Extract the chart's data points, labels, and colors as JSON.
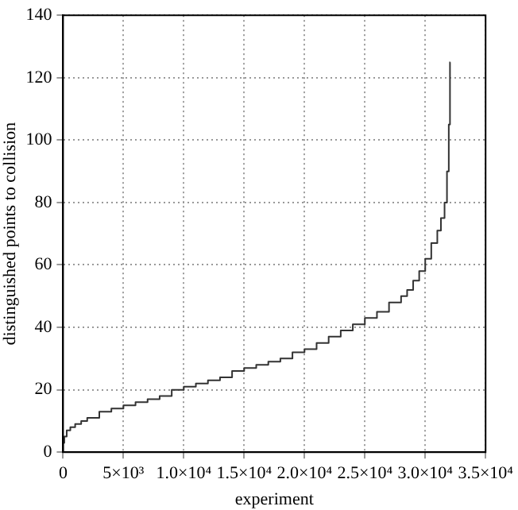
{
  "chart_data": {
    "type": "step",
    "xlabel": "experiment",
    "ylabel": "distinguished points to collision",
    "x": [
      0,
      100,
      300,
      600,
      1000,
      1500,
      2000,
      3000,
      4000,
      5000,
      6000,
      7000,
      8000,
      9000,
      10000,
      11000,
      12000,
      13000,
      14000,
      15000,
      16000,
      17000,
      18000,
      19000,
      20000,
      21000,
      22000,
      23000,
      24000,
      25000,
      26000,
      27000,
      28000,
      28500,
      29000,
      29500,
      30000,
      30500,
      31000,
      31300,
      31600,
      31800,
      31950,
      32050,
      32060
    ],
    "series": [
      {
        "color": "#333333",
        "values": [
          0,
          3,
          5,
          7,
          8,
          9,
          10,
          11,
          13,
          14,
          15,
          16,
          17,
          18,
          20,
          21,
          22,
          23,
          24,
          26,
          27,
          28,
          29,
          30,
          32,
          33,
          35,
          37,
          39,
          41,
          43,
          45,
          48,
          50,
          52,
          55,
          58,
          62,
          67,
          71,
          75,
          80,
          90,
          105,
          125
        ]
      }
    ],
    "xlim": [
      0,
      35000
    ],
    "ylim": [
      0,
      140
    ],
    "xticks": [
      0,
      {
        "value": 5000,
        "label": "5×10³"
      },
      {
        "value": 10000,
        "label": "1.0×10⁴"
      },
      {
        "value": 15000,
        "label": "1.5×10⁴"
      },
      {
        "value": 20000,
        "label": "2.0×10⁴"
      },
      {
        "value": 25000,
        "label": "2.5×10⁴"
      },
      {
        "value": 30000,
        "label": "3.0×10⁴"
      },
      {
        "value": 35000,
        "label": "3.5×10⁴"
      }
    ],
    "yticks": [
      0,
      20,
      40,
      60,
      80,
      100,
      120,
      140
    ],
    "grid": true,
    "legend": false,
    "marker": "none",
    "line_style": "solid"
  }
}
